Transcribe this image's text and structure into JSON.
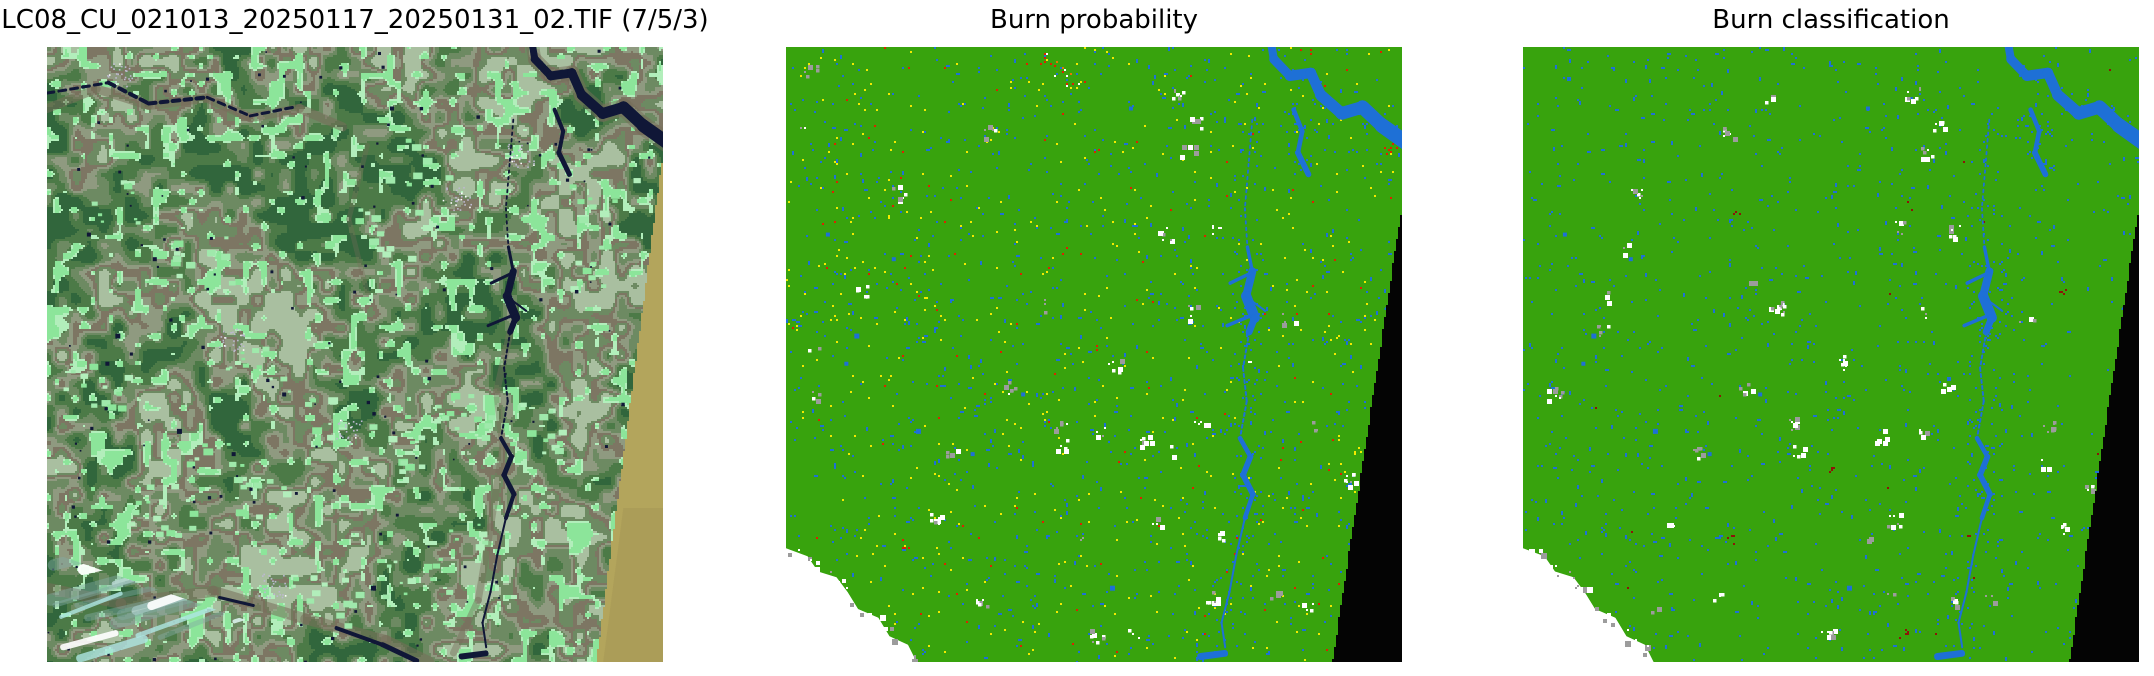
{
  "panels": [
    {
      "key": "satellite",
      "title": "LC08_CU_021013_20250117_20250131_02.TIF (7/5/3)"
    },
    {
      "key": "probability",
      "title": "Burn probability"
    },
    {
      "key": "classification",
      "title": "Burn classification"
    }
  ],
  "colors": {
    "figure_background": "#ffffff",
    "title_text": "#000000",
    "classified": {
      "vegetation_green": "#38a30d",
      "water_blue": "#1e70d6",
      "probability_yellow": "#f2ea00",
      "probability_red": "#dd2200",
      "probability_orange": "#e87800",
      "burned_dark_red": "#8e1408",
      "cloud_white": "#ffffff",
      "cloud_shadow_gray": "#9c9c9c",
      "nodata_black": "#040404"
    },
    "satellite": {
      "forest_dark_green": "#31663c",
      "forest_green": "#4c7a47",
      "olive_sage": "#6d8a62",
      "sage_gray": "#8f9a80",
      "valley_brown": "#7d7663",
      "pale_field": "#a9bfa0",
      "field_mint": "#8ce59a",
      "field_mint_light": "#b2eebb",
      "water_navy": "#101737",
      "city_lavender": "#bdb9d0",
      "cloud_cyan": "#aee6e2",
      "cloud_cyan_light": "#e2f7f5",
      "nodata_tan": "#b3a55c"
    }
  }
}
